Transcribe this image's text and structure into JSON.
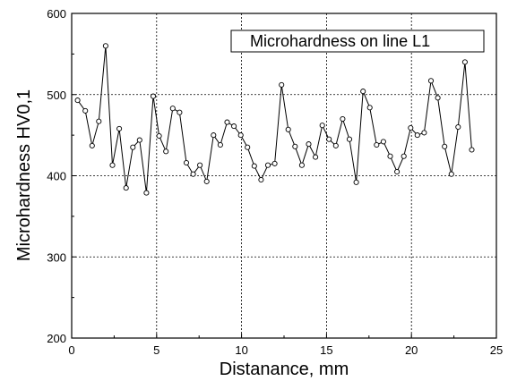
{
  "chart_data": {
    "type": "line",
    "title": "",
    "xlabel": "Distanance, mm",
    "ylabel": "Microhardness HV0,1",
    "xlim": [
      0,
      25
    ],
    "ylim": [
      200,
      600
    ],
    "xticks": [
      "0",
      "5",
      "10",
      "15",
      "20",
      "25"
    ],
    "yticks": [
      "200",
      "300",
      "400",
      "500",
      "600"
    ],
    "grid": true,
    "legend": {
      "text": "Microhardness on line L1",
      "placement": "top-right"
    },
    "series": [
      {
        "name": "Microhardness on line L1",
        "x": [
          0.35,
          0.8,
          1.2,
          1.6,
          2.0,
          2.4,
          2.8,
          3.2,
          3.6,
          4.0,
          4.4,
          4.8,
          5.15,
          5.55,
          5.95,
          6.35,
          6.75,
          7.15,
          7.55,
          7.95,
          8.35,
          8.75,
          9.15,
          9.55,
          9.95,
          10.35,
          10.75,
          11.15,
          11.55,
          11.95,
          12.35,
          12.75,
          13.15,
          13.55,
          13.95,
          14.35,
          14.75,
          15.15,
          15.55,
          15.95,
          16.35,
          16.75,
          17.15,
          17.55,
          17.95,
          18.35,
          18.75,
          19.15,
          19.55,
          19.95,
          20.35,
          20.75,
          21.15,
          21.55,
          21.95,
          22.35,
          22.75,
          23.15,
          23.55
        ],
        "y": [
          493,
          480,
          437,
          467,
          560,
          413,
          458,
          385,
          435,
          444,
          379,
          498,
          449,
          430,
          483,
          478,
          416,
          402,
          413,
          393,
          450,
          438,
          466,
          461,
          450,
          435,
          412,
          395,
          413,
          415,
          512,
          457,
          436,
          413,
          439,
          423,
          462,
          445,
          437,
          470,
          445,
          392,
          504,
          484,
          438,
          442,
          424,
          405,
          424,
          459,
          450,
          453,
          517,
          496,
          436,
          402,
          460,
          540,
          432
        ]
      }
    ]
  }
}
